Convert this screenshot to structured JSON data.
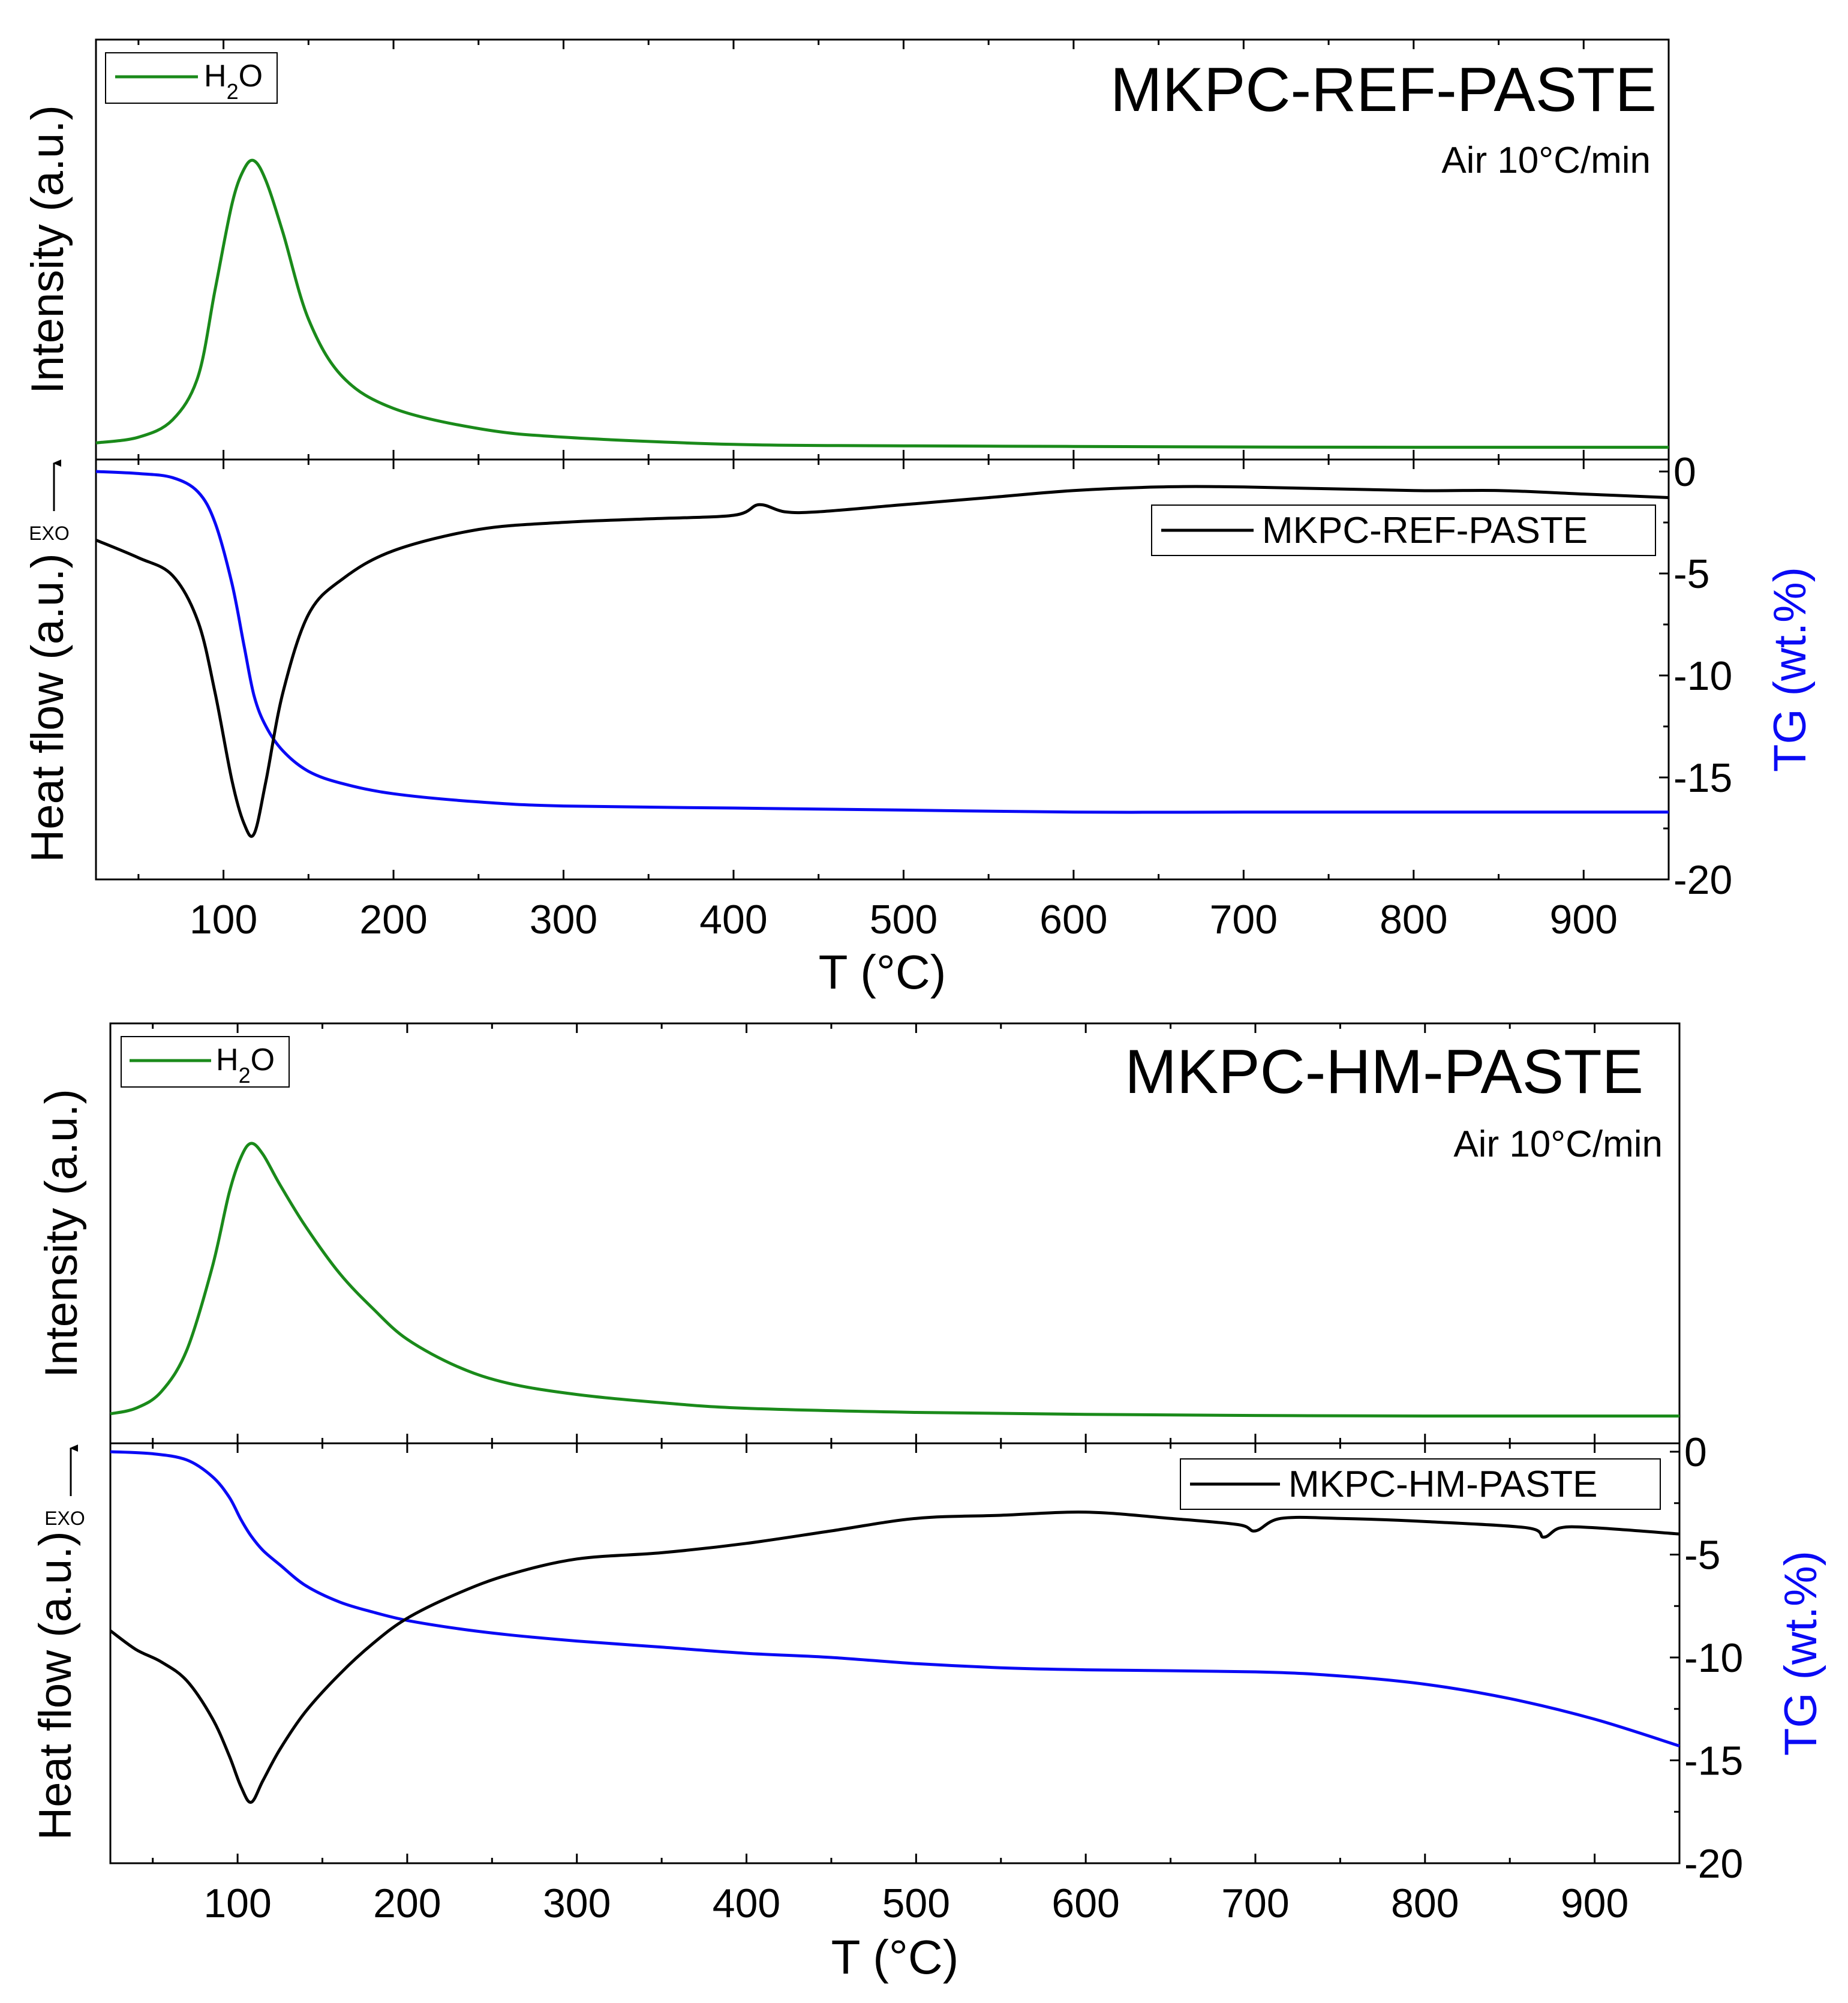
{
  "colors": {
    "ms": "#1a8a1a",
    "dsc": "#000000",
    "tg": "#0a0af5",
    "tg_axis": "#0a0af5",
    "frame": "#000000"
  },
  "chart_data": [
    {
      "type": "line",
      "title": "MKPC-REF-PASTE",
      "subtitle": "Air 10°C/min",
      "xlabel": "T (°C)",
      "xlim": [
        25,
        950
      ],
      "xticks": [
        100,
        200,
        300,
        400,
        500,
        600,
        700,
        800,
        900
      ],
      "ms_panel": {
        "ylabel": "Intensity (a.u.)",
        "legend": {
          "prefix": "H",
          "sub": "2",
          "suffix": "O",
          "placement": "top-left"
        },
        "series": [
          {
            "key": "h2o",
            "x": [
              25,
              50,
              70,
              85,
              95,
              105,
              112,
              118,
              125,
              135,
              150,
              170,
              200,
              250,
              300,
              400,
              500,
              600,
              700,
              800,
              950
            ],
            "y": [
              0.02,
              0.04,
              0.1,
              0.25,
              0.55,
              0.85,
              0.97,
              1.0,
              0.93,
              0.75,
              0.45,
              0.25,
              0.14,
              0.07,
              0.04,
              0.015,
              0.01,
              0.008,
              0.006,
              0.005,
              0.005
            ]
          }
        ]
      },
      "thermal_panel": {
        "ylabel": "Heat flow (a.u.)",
        "exo_label": "EXO",
        "y2label": "TG (wt.%)",
        "y2lim": [
          -20,
          0
        ],
        "y2ticks": [
          0,
          -5,
          -10,
          -15,
          -20
        ],
        "legend": {
          "label": "MKPC-REF-PASTE",
          "placement": "top-right"
        },
        "dsc": {
          "x": [
            25,
            50,
            70,
            85,
            95,
            105,
            112,
            118,
            125,
            135,
            150,
            170,
            200,
            250,
            300,
            350,
            400,
            415,
            430,
            450,
            500,
            550,
            600,
            650,
            700,
            800,
            850,
            900,
            950
          ],
          "y": [
            0.83,
            0.78,
            0.73,
            0.6,
            0.4,
            0.15,
            0.03,
            0.0,
            0.15,
            0.4,
            0.62,
            0.72,
            0.8,
            0.86,
            0.88,
            0.89,
            0.9,
            0.93,
            0.91,
            0.91,
            0.93,
            0.95,
            0.97,
            0.98,
            0.98,
            0.97,
            0.97,
            0.96,
            0.95
          ]
        },
        "tg": {
          "x": [
            25,
            50,
            70,
            85,
            95,
            105,
            112,
            118,
            125,
            135,
            150,
            170,
            200,
            250,
            300,
            400,
            500,
            600,
            700,
            800,
            950
          ],
          "y": [
            0.0,
            -0.1,
            -0.3,
            -1.0,
            -2.5,
            -5.5,
            -8.5,
            -11.0,
            -12.5,
            -13.7,
            -14.7,
            -15.3,
            -15.8,
            -16.2,
            -16.4,
            -16.5,
            -16.6,
            -16.7,
            -16.7,
            -16.7,
            -16.7
          ]
        }
      }
    },
    {
      "type": "line",
      "title": "MKPC-HM-PASTE",
      "subtitle": "Air 10°C/min",
      "xlabel": "T (°C)",
      "xlim": [
        25,
        950
      ],
      "xticks": [
        100,
        200,
        300,
        400,
        500,
        600,
        700,
        800,
        900
      ],
      "ms_panel": {
        "ylabel": "Intensity (a.u.)",
        "legend": {
          "prefix": "H",
          "sub": "2",
          "suffix": "O",
          "placement": "top-left"
        },
        "series": [
          {
            "key": "h2o",
            "x": [
              25,
              40,
              55,
              70,
              85,
              95,
              102,
              108,
              115,
              125,
              140,
              160,
              180,
              200,
              230,
              260,
              300,
              350,
              400,
              500,
              600,
              700,
              800,
              950
            ],
            "y": [
              0.02,
              0.04,
              0.1,
              0.25,
              0.55,
              0.82,
              0.95,
              1.0,
              0.96,
              0.85,
              0.7,
              0.53,
              0.4,
              0.29,
              0.19,
              0.13,
              0.09,
              0.06,
              0.04,
              0.025,
              0.018,
              0.014,
              0.012,
              0.012
            ]
          }
        ]
      },
      "thermal_panel": {
        "ylabel": "Heat flow (a.u.)",
        "exo_label": "EXO",
        "y2label": "TG (wt.%)",
        "y2lim": [
          -20,
          0
        ],
        "y2ticks": [
          0,
          -5,
          -10,
          -15,
          -20
        ],
        "legend": {
          "label": "MKPC-HM-PASTE",
          "placement": "top-right"
        },
        "dsc": {
          "x": [
            25,
            40,
            55,
            70,
            85,
            95,
            102,
            108,
            115,
            125,
            140,
            160,
            180,
            200,
            230,
            260,
            300,
            350,
            400,
            450,
            500,
            550,
            600,
            650,
            690,
            700,
            715,
            750,
            800,
            860,
            870,
            880,
            900,
            950
          ],
          "y": [
            0.58,
            0.52,
            0.48,
            0.42,
            0.3,
            0.18,
            0.08,
            0.03,
            0.1,
            0.2,
            0.32,
            0.44,
            0.54,
            0.62,
            0.7,
            0.76,
            0.81,
            0.83,
            0.86,
            0.9,
            0.94,
            0.95,
            0.96,
            0.94,
            0.92,
            0.9,
            0.94,
            0.94,
            0.93,
            0.91,
            0.88,
            0.91,
            0.91,
            0.89
          ]
        },
        "tg": {
          "x": [
            25,
            50,
            70,
            85,
            95,
            102,
            108,
            115,
            125,
            140,
            160,
            180,
            200,
            230,
            260,
            300,
            350,
            400,
            450,
            500,
            550,
            600,
            700,
            750,
            800,
            850,
            900,
            950
          ],
          "y": [
            0.0,
            -0.1,
            -0.4,
            -1.2,
            -2.2,
            -3.3,
            -4.1,
            -4.8,
            -5.5,
            -6.5,
            -7.3,
            -7.8,
            -8.2,
            -8.6,
            -8.9,
            -9.2,
            -9.5,
            -9.8,
            -10.0,
            -10.3,
            -10.5,
            -10.6,
            -10.7,
            -10.9,
            -11.3,
            -12.0,
            -13.0,
            -14.3
          ]
        }
      }
    }
  ]
}
